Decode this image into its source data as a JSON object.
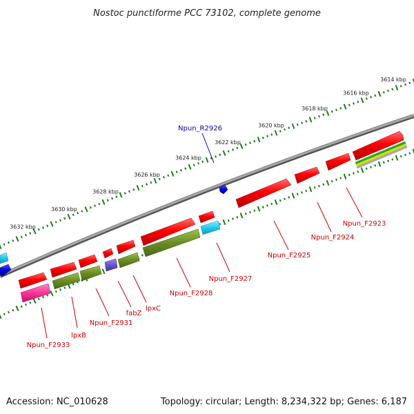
{
  "title": "Nostoc punctiforme PCC 73102, complete genome",
  "accession": "Accession: NC_010628",
  "topology": "Topology: circular; Length: 8,234,322 bp; Genes: 6,187",
  "scale": {
    "ticks": [
      {
        "kbp": 3614,
        "label": "3614 kbp"
      },
      {
        "kbp": 3616,
        "label": "3616 kbp"
      },
      {
        "kbp": 3618,
        "label": "3618 kbp"
      },
      {
        "kbp": 3620,
        "label": "3620 kbp"
      },
      {
        "kbp": 3622,
        "label": "3622 kbp"
      },
      {
        "kbp": 3624,
        "label": "3624 kbp"
      },
      {
        "kbp": 3626,
        "label": "3626 kbp"
      },
      {
        "kbp": 3628,
        "label": "3628 kbp"
      },
      {
        "kbp": 3630,
        "label": "3630 kbp"
      },
      {
        "kbp": 3632,
        "label": "3632 kbp"
      }
    ]
  },
  "genes": [
    {
      "id": "Npun_R2926",
      "label": "Npun_R2926",
      "strand": "rna",
      "color": "#0000dd"
    },
    {
      "id": "Npun_F2923",
      "label": "Npun_F2923",
      "strand": "plus",
      "color": "#ff0000"
    },
    {
      "id": "Npun_F2924",
      "label": "Npun_F2924",
      "strand": "plus",
      "color": "#ff0000"
    },
    {
      "id": "Npun_F2925",
      "label": "Npun_F2925",
      "strand": "plus",
      "color": "#ff0000"
    },
    {
      "id": "Npun_F2927",
      "label": "Npun_F2927",
      "strand": "plus",
      "color": "#ff0000"
    },
    {
      "id": "Npun_F2928",
      "label": "Npun_F2928",
      "strand": "plus",
      "color": "#ff0000"
    },
    {
      "id": "lpxC",
      "label": "lpxC",
      "strand": "plus",
      "color": "#ff0000"
    },
    {
      "id": "fabZ",
      "label": "fabZ",
      "strand": "plus",
      "color": "#ff0000"
    },
    {
      "id": "Npun_F2931",
      "label": "Npun_F2931",
      "strand": "plus",
      "color": "#ff0000"
    },
    {
      "id": "lpxB",
      "label": "lpxB",
      "strand": "plus",
      "color": "#ff0000"
    },
    {
      "id": "Npun_F2933",
      "label": "Npun_F2933",
      "strand": "plus",
      "color": "#ff0000"
    }
  ],
  "colors": {
    "backbone": "#8a8a8a",
    "tick": "#1a7a1a",
    "gene_red": "#ff0000",
    "cog_olive": "#6b8e23",
    "cog_cyan": "#22ccee",
    "cog_pink": "#ff3399",
    "cog_slate": "#6655cc",
    "rna_blue": "#0000dd"
  }
}
